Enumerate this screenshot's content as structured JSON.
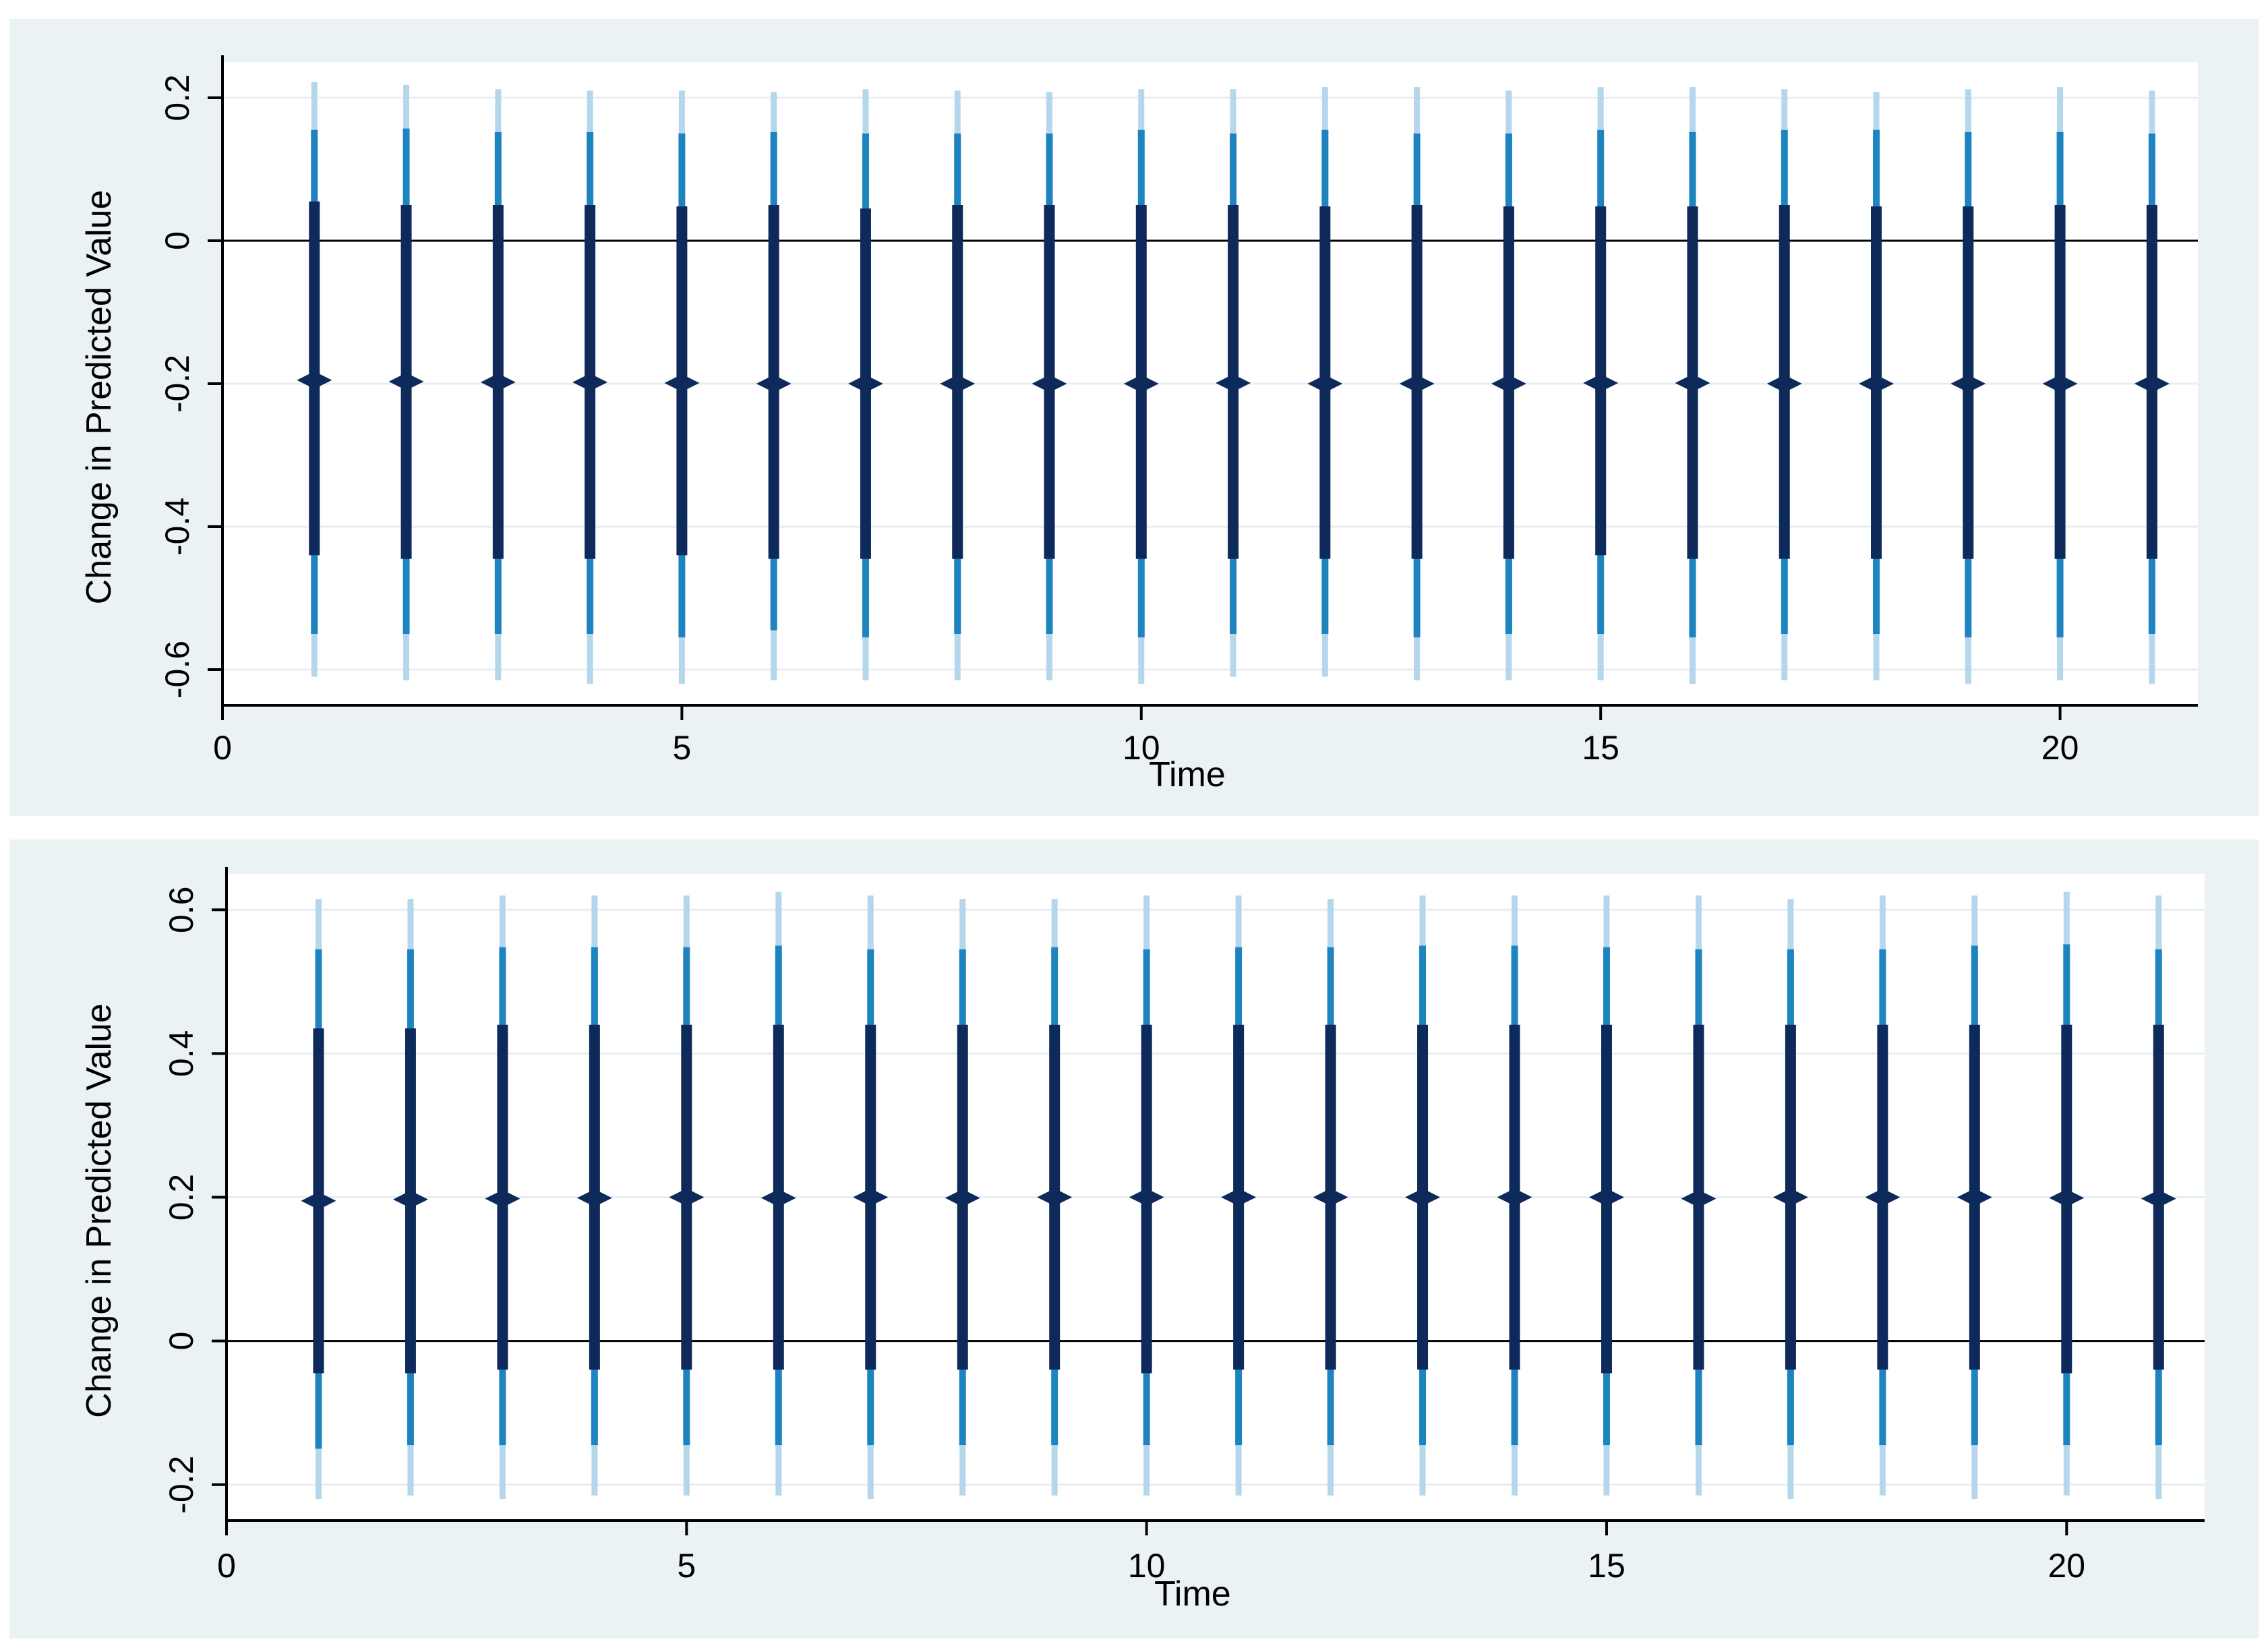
{
  "chart_data": [
    {
      "type": "scatter",
      "title": "",
      "xlabel": "Time",
      "ylabel": "Change in Predicted Value",
      "xlim": [
        0,
        21.5
      ],
      "ylim": [
        -0.65,
        0.25
      ],
      "xticks": [
        0,
        5,
        10,
        15,
        20
      ],
      "xtick_labels": [
        "0",
        "5",
        "10",
        "15",
        "20"
      ],
      "yticks": [
        0.2,
        0,
        -0.2,
        -0.4,
        -0.6
      ],
      "ytick_labels": [
        "0.2",
        "0",
        "-0.2",
        "-0.4",
        "-0.6"
      ],
      "reference_line": 0,
      "grid": true,
      "legend": "none",
      "x": [
        1,
        2,
        3,
        4,
        5,
        6,
        7,
        8,
        9,
        10,
        11,
        12,
        13,
        14,
        15,
        16,
        17,
        18,
        19,
        20,
        21
      ],
      "series": [
        {
          "point": [
            -0.195,
            -0.197,
            -0.198,
            -0.198,
            -0.199,
            -0.2,
            -0.2,
            -0.2,
            -0.2,
            -0.2,
            -0.199,
            -0.2,
            -0.2,
            -0.2,
            -0.199,
            -0.199,
            -0.2,
            -0.2,
            -0.2,
            -0.2,
            -0.2
          ],
          "ci_inner_low": [
            -0.44,
            -0.445,
            -0.445,
            -0.445,
            -0.44,
            -0.445,
            -0.445,
            -0.445,
            -0.445,
            -0.445,
            -0.445,
            -0.445,
            -0.445,
            -0.445,
            -0.44,
            -0.445,
            -0.445,
            -0.445,
            -0.445,
            -0.445,
            -0.445
          ],
          "ci_inner_high": [
            0.055,
            0.05,
            0.05,
            0.05,
            0.048,
            0.05,
            0.045,
            0.05,
            0.05,
            0.05,
            0.05,
            0.048,
            0.05,
            0.048,
            0.048,
            0.048,
            0.05,
            0.048,
            0.048,
            0.05,
            0.05
          ],
          "ci_mid_low": [
            -0.55,
            -0.55,
            -0.55,
            -0.55,
            -0.555,
            -0.545,
            -0.555,
            -0.55,
            -0.55,
            -0.555,
            -0.55,
            -0.55,
            -0.555,
            -0.55,
            -0.55,
            -0.555,
            -0.55,
            -0.55,
            -0.555,
            -0.555,
            -0.55
          ],
          "ci_mid_high": [
            0.155,
            0.157,
            0.152,
            0.152,
            0.15,
            0.152,
            0.15,
            0.15,
            0.15,
            0.155,
            0.15,
            0.155,
            0.15,
            0.15,
            0.155,
            0.152,
            0.155,
            0.155,
            0.152,
            0.152,
            0.15
          ],
          "ci_outer_low": [
            -0.61,
            -0.615,
            -0.615,
            -0.62,
            -0.62,
            -0.615,
            -0.615,
            -0.615,
            -0.615,
            -0.62,
            -0.61,
            -0.61,
            -0.615,
            -0.615,
            -0.615,
            -0.62,
            -0.615,
            -0.615,
            -0.62,
            -0.615,
            -0.62
          ],
          "ci_outer_high": [
            0.222,
            0.218,
            0.212,
            0.21,
            0.21,
            0.208,
            0.212,
            0.21,
            0.208,
            0.212,
            0.212,
            0.215,
            0.215,
            0.21,
            0.215,
            0.215,
            0.212,
            0.208,
            0.212,
            0.215,
            0.21
          ]
        }
      ],
      "colors": {
        "outer": "#b4d7ec",
        "mid": "#1d84bf",
        "inner": "#0d2a5a",
        "point": "#0d2a5a"
      }
    },
    {
      "type": "scatter",
      "title": "",
      "xlabel": "Time",
      "ylabel": "Change in Predicted Value",
      "xlim": [
        0,
        21.5
      ],
      "ylim": [
        -0.25,
        0.65
      ],
      "xticks": [
        0,
        5,
        10,
        15,
        20
      ],
      "xtick_labels": [
        "0",
        "5",
        "10",
        "15",
        "20"
      ],
      "yticks": [
        0.6,
        0.4,
        0.2,
        0,
        -0.2
      ],
      "ytick_labels": [
        "0.6",
        "0.4",
        "0.2",
        "0",
        "-0.2"
      ],
      "reference_line": 0,
      "grid": true,
      "legend": "none",
      "x": [
        1,
        2,
        3,
        4,
        5,
        6,
        7,
        8,
        9,
        10,
        11,
        12,
        13,
        14,
        15,
        16,
        17,
        18,
        19,
        20,
        21
      ],
      "series": [
        {
          "point": [
            0.195,
            0.197,
            0.198,
            0.199,
            0.2,
            0.199,
            0.2,
            0.199,
            0.2,
            0.2,
            0.2,
            0.2,
            0.2,
            0.2,
            0.2,
            0.198,
            0.2,
            0.2,
            0.2,
            0.199,
            0.198
          ],
          "ci_inner_low": [
            -0.045,
            -0.045,
            -0.04,
            -0.04,
            -0.04,
            -0.04,
            -0.04,
            -0.04,
            -0.04,
            -0.045,
            -0.04,
            -0.04,
            -0.04,
            -0.04,
            -0.045,
            -0.04,
            -0.04,
            -0.04,
            -0.04,
            -0.045,
            -0.04
          ],
          "ci_inner_high": [
            0.435,
            0.435,
            0.44,
            0.44,
            0.44,
            0.44,
            0.44,
            0.44,
            0.44,
            0.44,
            0.44,
            0.44,
            0.44,
            0.44,
            0.44,
            0.44,
            0.44,
            0.44,
            0.44,
            0.44,
            0.44
          ],
          "ci_mid_low": [
            -0.15,
            -0.145,
            -0.145,
            -0.145,
            -0.145,
            -0.145,
            -0.145,
            -0.145,
            -0.145,
            -0.145,
            -0.145,
            -0.145,
            -0.145,
            -0.145,
            -0.145,
            -0.145,
            -0.145,
            -0.145,
            -0.145,
            -0.145,
            -0.145
          ],
          "ci_mid_high": [
            0.545,
            0.545,
            0.548,
            0.548,
            0.548,
            0.55,
            0.545,
            0.545,
            0.548,
            0.545,
            0.548,
            0.548,
            0.55,
            0.55,
            0.548,
            0.545,
            0.545,
            0.545,
            0.55,
            0.552,
            0.545
          ],
          "ci_outer_low": [
            -0.22,
            -0.215,
            -0.22,
            -0.215,
            -0.215,
            -0.215,
            -0.22,
            -0.215,
            -0.215,
            -0.215,
            -0.215,
            -0.215,
            -0.215,
            -0.215,
            -0.215,
            -0.215,
            -0.22,
            -0.215,
            -0.22,
            -0.215,
            -0.22
          ],
          "ci_outer_high": [
            0.615,
            0.615,
            0.62,
            0.62,
            0.62,
            0.625,
            0.62,
            0.615,
            0.615,
            0.62,
            0.62,
            0.615,
            0.62,
            0.62,
            0.62,
            0.62,
            0.615,
            0.62,
            0.62,
            0.625,
            0.62
          ]
        }
      ],
      "colors": {
        "outer": "#b4d7ec",
        "mid": "#1d84bf",
        "inner": "#0d2a5a",
        "point": "#0d2a5a"
      }
    }
  ]
}
